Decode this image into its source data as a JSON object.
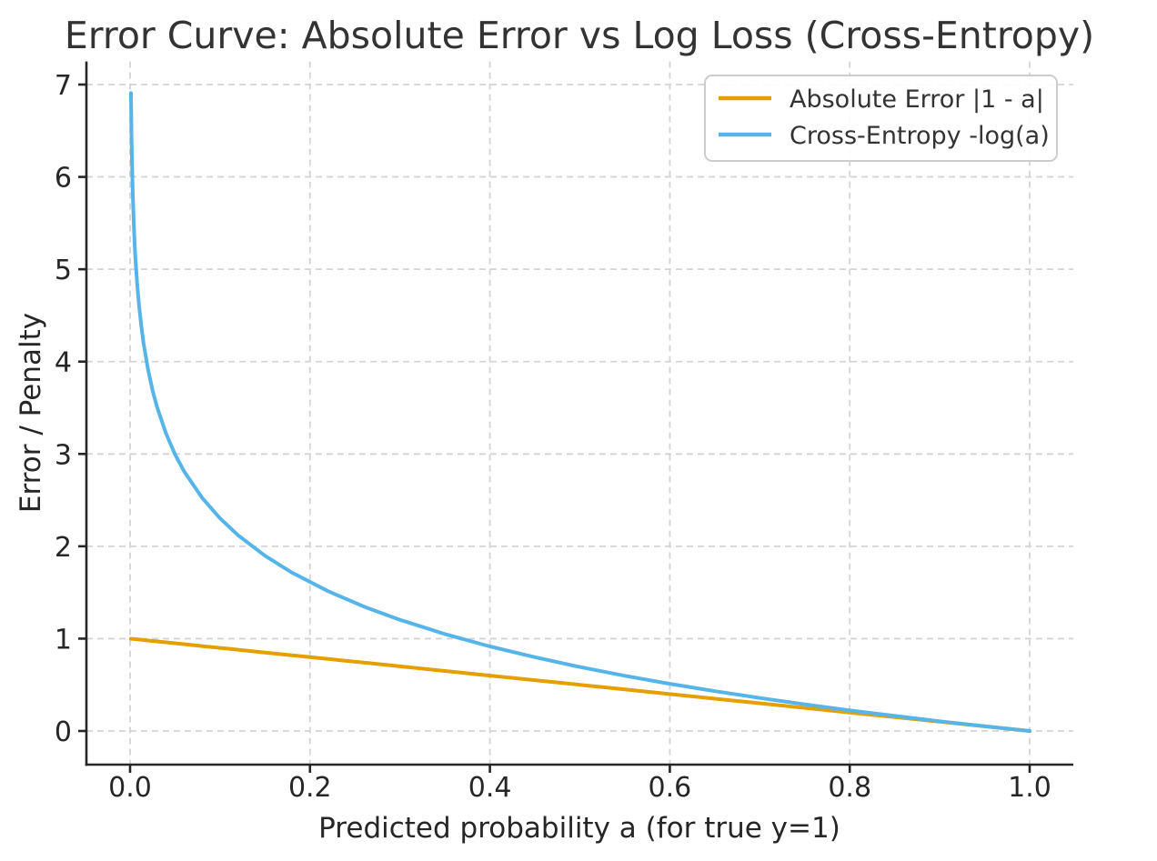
{
  "chart_data": {
    "type": "line",
    "title": "Error Curve: Absolute Error vs Log Loss (Cross-Entropy)",
    "xlabel": "Predicted probability a (for true y=1)",
    "ylabel": "Error / Penalty",
    "xlim": [
      -0.0485,
      1.0486
    ],
    "ylim": [
      -0.3645,
      7.2523
    ],
    "xticks": [
      0.0,
      0.2,
      0.4,
      0.6,
      0.8,
      1.0
    ],
    "xtick_labels": [
      "0.0",
      "0.2",
      "0.4",
      "0.6",
      "0.8",
      "1.0"
    ],
    "yticks": [
      0,
      1,
      2,
      3,
      4,
      5,
      6,
      7
    ],
    "ytick_labels": [
      "0",
      "1",
      "2",
      "3",
      "4",
      "5",
      "6",
      "7"
    ],
    "grid": "dashed both axes",
    "legend_position": "upper right",
    "x": [
      0.001,
      0.0015,
      0.002,
      0.003,
      0.004,
      0.005,
      0.006,
      0.008,
      0.01,
      0.0125,
      0.015,
      0.02,
      0.025,
      0.03,
      0.04,
      0.05,
      0.06,
      0.08,
      0.1,
      0.12,
      0.15,
      0.18,
      0.22,
      0.26,
      0.3,
      0.35,
      0.4,
      0.45,
      0.5,
      0.55,
      0.6,
      0.65,
      0.7,
      0.75,
      0.8,
      0.85,
      0.9,
      0.95,
      1.0
    ],
    "series": [
      {
        "name": "Absolute Error |1 - a|",
        "color": "#E69F00",
        "values": [
          0.999,
          0.9985,
          0.998,
          0.997,
          0.996,
          0.995,
          0.994,
          0.992,
          0.99,
          0.9875,
          0.985,
          0.98,
          0.975,
          0.97,
          0.96,
          0.95,
          0.94,
          0.92,
          0.9,
          0.88,
          0.85,
          0.82,
          0.78,
          0.74,
          0.7,
          0.65,
          0.6,
          0.55,
          0.5,
          0.45,
          0.4,
          0.35,
          0.3,
          0.25,
          0.2,
          0.15,
          0.1,
          0.05,
          0.0
        ]
      },
      {
        "name": "Cross-Entropy -log(a)",
        "color": "#56B4E9",
        "values": [
          6.908,
          6.502,
          6.215,
          5.809,
          5.521,
          5.298,
          5.116,
          4.828,
          4.605,
          4.382,
          4.2,
          3.912,
          3.689,
          3.507,
          3.219,
          2.996,
          2.813,
          2.526,
          2.303,
          2.12,
          1.897,
          1.715,
          1.514,
          1.347,
          1.204,
          1.05,
          0.916,
          0.799,
          0.693,
          0.598,
          0.511,
          0.431,
          0.357,
          0.288,
          0.223,
          0.163,
          0.105,
          0.051,
          0.0
        ]
      }
    ]
  },
  "legend": {
    "items": [
      {
        "label": "Absolute Error |1 - a|",
        "color": "#E69F00"
      },
      {
        "label": "Cross-Entropy -log(a)",
        "color": "#56B4E9"
      }
    ]
  },
  "colors": {
    "background": "#FFFFFF",
    "text": "#262626",
    "title_text": "#333333",
    "grid": "#D4D4D4",
    "spine": "#262626",
    "legend_border": "#CCCCCC",
    "series_orange": "#E69F00",
    "series_blue": "#56B4E9"
  }
}
